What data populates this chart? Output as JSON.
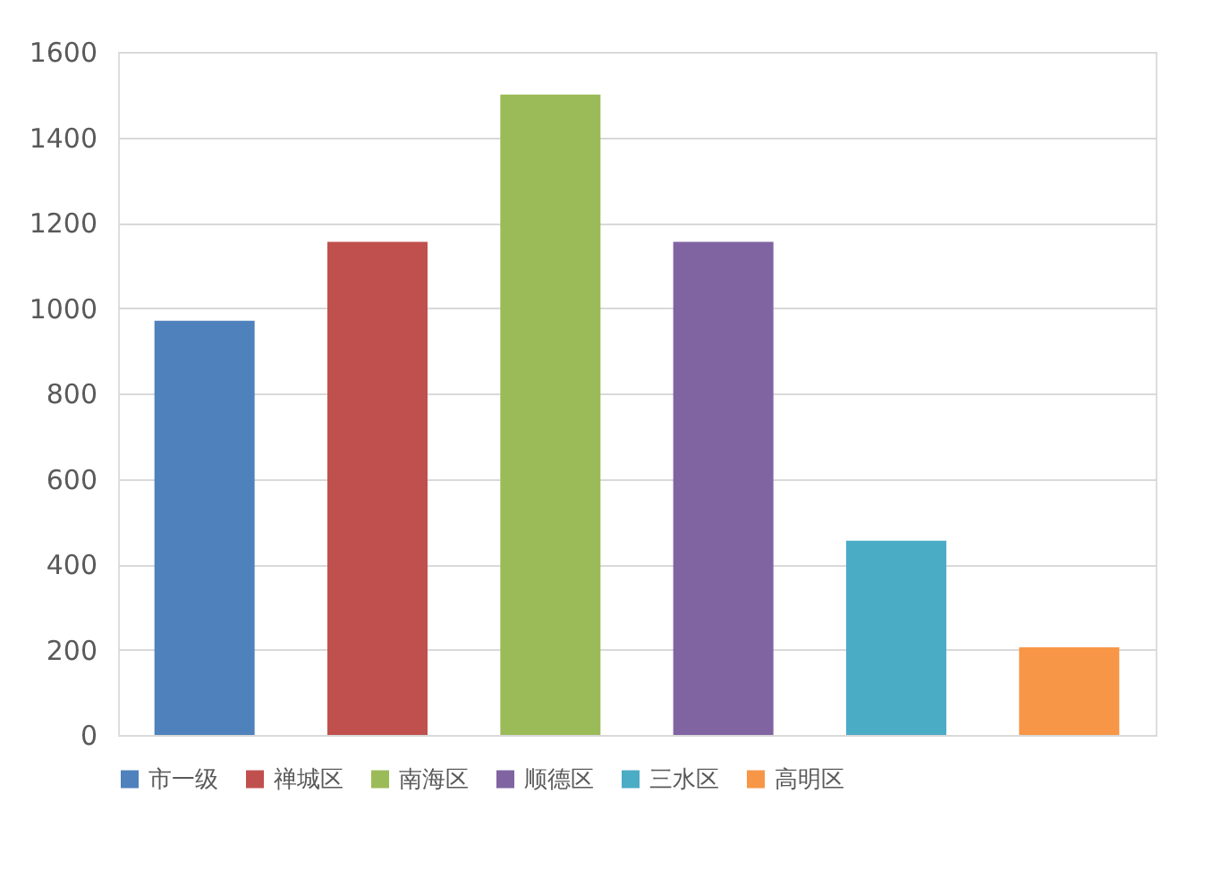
{
  "chart_data": {
    "type": "bar",
    "categories": [
      null,
      null,
      null,
      null,
      null,
      null
    ],
    "series": [
      {
        "name": "市一级",
        "color": "#4f81bd",
        "values": [
          970,
          null,
          null,
          null,
          null,
          null
        ]
      },
      {
        "name": "禅城区",
        "color": "#c0504d",
        "values": [
          null,
          1155,
          null,
          null,
          null,
          null
        ]
      },
      {
        "name": "南海区",
        "color": "#9bbb59",
        "values": [
          null,
          null,
          1500,
          null,
          null,
          null
        ]
      },
      {
        "name": "顺德区",
        "color": "#8064a2",
        "values": [
          null,
          null,
          null,
          1155,
          null,
          null
        ]
      },
      {
        "name": "三水区",
        "color": "#4bacc6",
        "values": [
          null,
          null,
          null,
          null,
          455,
          null
        ]
      },
      {
        "name": "高明区",
        "color": "#f79646",
        "values": [
          null,
          null,
          null,
          null,
          null,
          205
        ]
      }
    ],
    "ylim": [
      0,
      1600
    ],
    "yticks": [
      0,
      200,
      400,
      600,
      800,
      1000,
      1200,
      1400,
      1600
    ],
    "grid": "y",
    "legend": "bottom",
    "tick_labels": "y"
  }
}
